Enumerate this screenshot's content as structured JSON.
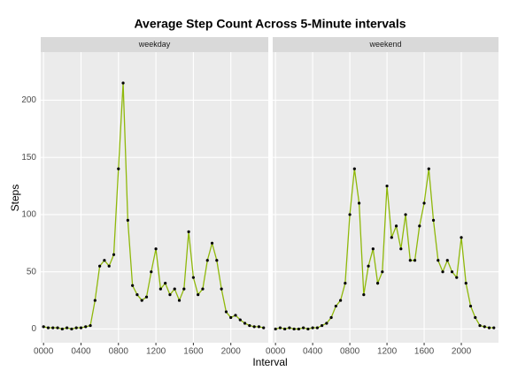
{
  "chart_data": {
    "type": "line",
    "title": "Average Step Count Across 5-Minute intervals",
    "xlabel": "Interval",
    "ylabel": "Steps",
    "color": "#8fb80a",
    "point_color": "#000000",
    "grid": true,
    "xlim": [
      -30,
      2400
    ],
    "ylim": [
      -12,
      242
    ],
    "xticks": [
      {
        "value": 0,
        "label": "0000"
      },
      {
        "value": 400,
        "label": "0400"
      },
      {
        "value": 800,
        "label": "0800"
      },
      {
        "value": 1200,
        "label": "1200"
      },
      {
        "value": 1600,
        "label": "1600"
      },
      {
        "value": 2000,
        "label": "2000"
      }
    ],
    "yticks": [
      0,
      50,
      100,
      150,
      200
    ],
    "x": [
      0,
      50,
      100,
      150,
      200,
      250,
      300,
      350,
      400,
      450,
      500,
      550,
      600,
      650,
      700,
      750,
      800,
      850,
      900,
      950,
      1000,
      1050,
      1100,
      1150,
      1200,
      1250,
      1300,
      1350,
      1400,
      1450,
      1500,
      1550,
      1600,
      1650,
      1700,
      1750,
      1800,
      1850,
      1900,
      1950,
      2000,
      2050,
      2100,
      2150,
      2200,
      2250,
      2300,
      2350
    ],
    "panels": [
      {
        "name": "weekday",
        "values": [
          2,
          1,
          1,
          1,
          0,
          1,
          0,
          1,
          1,
          2,
          3,
          25,
          55,
          60,
          55,
          65,
          140,
          215,
          95,
          38,
          30,
          25,
          28,
          50,
          70,
          35,
          40,
          30,
          35,
          25,
          35,
          85,
          45,
          30,
          35,
          60,
          75,
          60,
          35,
          15,
          10,
          12,
          8,
          5,
          3,
          2,
          2,
          1
        ]
      },
      {
        "name": "weekend",
        "values": [
          0,
          1,
          0,
          1,
          0,
          0,
          1,
          0,
          1,
          1,
          3,
          5,
          10,
          20,
          25,
          40,
          100,
          140,
          110,
          30,
          55,
          70,
          40,
          50,
          125,
          80,
          90,
          70,
          100,
          60,
          60,
          90,
          110,
          140,
          95,
          60,
          50,
          60,
          50,
          45,
          80,
          40,
          20,
          10,
          3,
          2,
          1,
          1
        ]
      }
    ]
  }
}
